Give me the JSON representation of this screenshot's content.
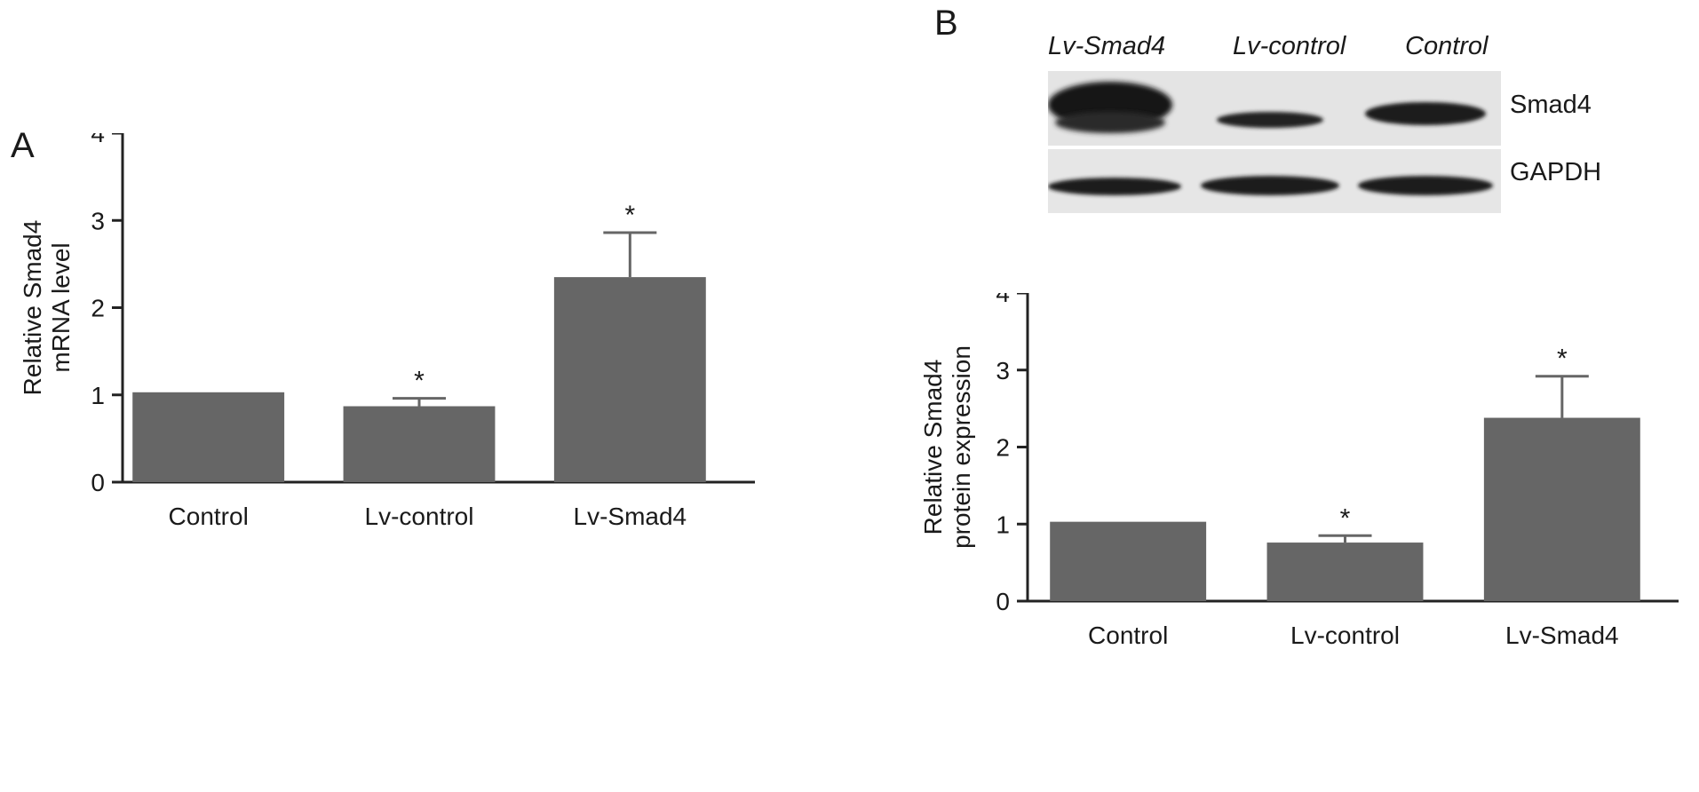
{
  "panels": {
    "a": "A",
    "b": "B"
  },
  "blot": {
    "lanes": [
      "Lv-Smad4",
      "Lv-control",
      "Control"
    ],
    "bands": [
      "Smad4",
      "GAPDH"
    ],
    "colors": {
      "membrane": "#e2e2e2",
      "band": "#1c1c1c"
    }
  },
  "chart_data": [
    {
      "type": "bar",
      "categories": [
        "Control",
        "Lv-control",
        "Lv-Smad4"
      ],
      "values": [
        1.03,
        0.87,
        2.35
      ],
      "errors": [
        0,
        0.09,
        0.51
      ],
      "significance": [
        "",
        "*",
        "*"
      ],
      "xlabel": "",
      "ylabel": "Relative Smad4 mRNA level",
      "ylim": [
        0,
        4
      ],
      "yticks": [
        0,
        1,
        2,
        3,
        4
      ],
      "bar_color": "#666666"
    },
    {
      "type": "bar",
      "categories": [
        "Control",
        "Lv-control",
        "Lv-Smad4"
      ],
      "values": [
        1.03,
        0.76,
        2.38
      ],
      "errors": [
        0,
        0.09,
        0.54
      ],
      "significance": [
        "",
        "*",
        "*"
      ],
      "xlabel": "",
      "ylabel": "Relative Smad4 protein expression",
      "ylim": [
        0,
        4
      ],
      "yticks": [
        0,
        1,
        2,
        3,
        4
      ],
      "bar_color": "#666666"
    }
  ]
}
